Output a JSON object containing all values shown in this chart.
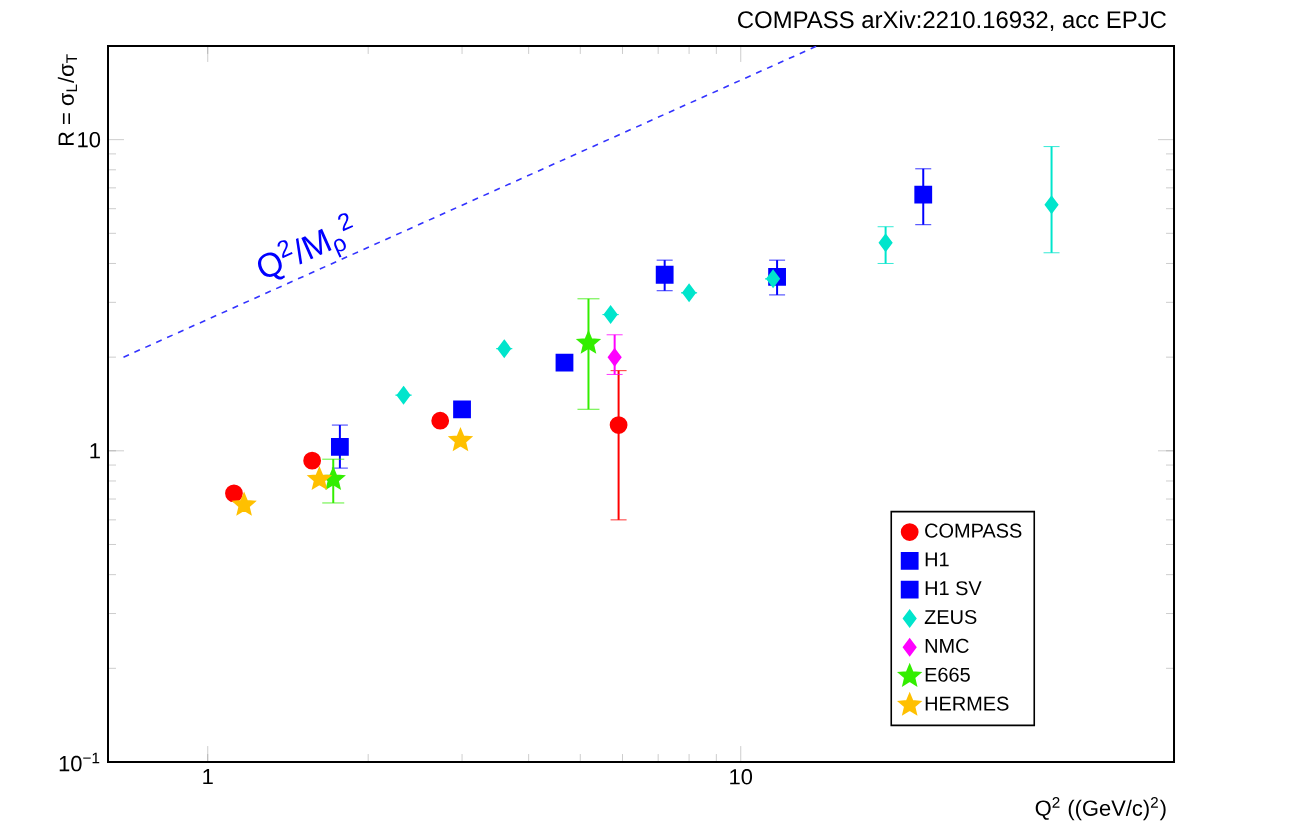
{
  "chart_data": {
    "type": "scatter",
    "title": "COMPASS arXiv:2210.16932, acc EPJC",
    "xlabel": "Q$^{2}$ ((GeV/c)$^{2}$)",
    "ylabel": "R = σ$_{L}$/σ$_{T}$",
    "log": "xy",
    "xlim": [
      0.65,
      65
    ],
    "ylim": [
      0.1,
      20
    ],
    "xticks": [
      1,
      10
    ],
    "yticks": [
      {
        "value": 0.1,
        "label": "10$^{−1}$"
      },
      1,
      10
    ],
    "grid": false,
    "legend": "bottom right",
    "annotations": [
      {
        "text": "Q$^{2}$/M$_{ρ}$$^{2}$",
        "x": 1.6,
        "y": 3.8
      }
    ],
    "series": [
      {
        "type": "line",
        "color": "#3333ff",
        "line_style": "dashed",
        "marker": "none",
        "x": [
          0.695,
          13.9
        ],
        "values": [
          2.0,
          20
        ]
      },
      {
        "name": "COMPASS",
        "color": "#ff0000",
        "marker": "circle",
        "x": [
          1.12,
          1.57,
          2.73,
          5.9
        ],
        "values": [
          0.73,
          0.93,
          1.25,
          1.21
        ],
        "errors": [
          null,
          null,
          null,
          [
            0.6,
            1.81
          ]
        ]
      },
      {
        "name": "H1",
        "color": "#0000ff",
        "marker": "square",
        "x": [
          3.0,
          4.67,
          7.2,
          11.7,
          22.0
        ],
        "values": [
          1.36,
          1.92,
          3.68,
          3.62,
          6.66
        ],
        "errors": [
          null,
          null,
          [
            3.27,
            4.1
          ],
          [
            3.17,
            4.1
          ],
          [
            5.33,
            8.06
          ]
        ]
      },
      {
        "name": "H1 SV",
        "color": "#0000ff",
        "marker": "square",
        "x": [
          1.77
        ],
        "values": [
          1.03
        ],
        "errors": [
          [
            0.88,
            1.21
          ]
        ]
      },
      {
        "name": "ZEUS",
        "color": "#00e5cc",
        "marker": "diamond",
        "x": [
          2.33,
          3.6,
          5.7,
          8.0,
          11.5,
          18.7,
          38.3
        ],
        "values": [
          1.51,
          2.13,
          2.74,
          3.22,
          3.57,
          4.66,
          6.18
        ],
        "errors": [
          null,
          null,
          null,
          null,
          null,
          [
            4.0,
            5.25
          ],
          [
            4.33,
            9.5
          ]
        ]
      },
      {
        "name": "NMC",
        "color": "#ff00ff",
        "marker": "diamond",
        "x": [
          5.8
        ],
        "values": [
          2.0
        ],
        "errors": [
          [
            1.76,
            2.36
          ]
        ]
      },
      {
        "name": "E665",
        "color": "#33ee00",
        "marker": "star",
        "x": [
          1.72,
          5.18
        ],
        "values": [
          0.81,
          2.22
        ],
        "errors": [
          [
            0.68,
            0.94
          ],
          [
            1.36,
            3.08
          ]
        ]
      },
      {
        "name": "HERMES",
        "color": "#ffc000",
        "marker": "star",
        "x": [
          1.17,
          1.62,
          2.98
        ],
        "values": [
          0.67,
          0.81,
          1.08
        ]
      }
    ]
  }
}
